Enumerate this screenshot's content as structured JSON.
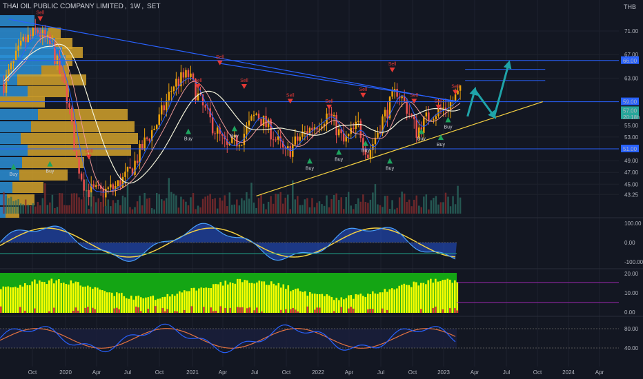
{
  "header": {
    "symbol": "THAI OIL PUBLIC COMPANY LIMITED",
    "interval": "1W",
    "exchange": "SET"
  },
  "currency": "THB",
  "colors": {
    "background": "#131722",
    "grid": "#1e222d",
    "up": "#f0a30a",
    "down": "#ef5350",
    "up_candle": "#26a69a",
    "volume_profile_up": "#2b8fd6",
    "volume_profile_down": "#d4a22a",
    "trendline_blue": "#2962ff",
    "trendline_yellow": "#f5d142",
    "arrow": "#1fa3a8",
    "buy": "#1ea35f",
    "sell": "#e53935",
    "label_blue": "#2962ff",
    "stoch_line1": "#2962ff",
    "stoch_line2": "#e57340",
    "osc_green": "#14a514",
    "osc_yellow": "#ffff00",
    "osc_red": "#e53935"
  },
  "chart_data": {
    "type": "candlestick",
    "x_axis_labels": [
      "Oct",
      "2020",
      "Apr",
      "Jul",
      "Oct",
      "2021",
      "Apr",
      "Jul",
      "Oct",
      "2022",
      "Apr",
      "Jul",
      "Oct",
      "2023",
      "Apr",
      "Jul",
      "Oct",
      "2024",
      "Apr"
    ],
    "price_axis": {
      "ticks": [
        "71.00",
        "67.00",
        "63.00",
        "59.00",
        "55.00",
        "53.00",
        "51.00",
        "49.00",
        "47.00",
        "45.00",
        "43.25"
      ],
      "labels": [
        {
          "text": "66.00",
          "kind": "level"
        },
        {
          "text": "59.00",
          "kind": "level"
        },
        {
          "text": "57.00",
          "kind": "price"
        },
        {
          "text": "20:18h",
          "kind": "countdown"
        },
        {
          "text": "51.00",
          "kind": "level"
        }
      ]
    },
    "horizontal_levels": [
      66.0,
      59.0,
      51.0
    ],
    "target_levels": [
      64.5,
      62.6
    ],
    "signals": {
      "sell_label": "Sell",
      "buy_label": "Buy",
      "sell_points": [
        {
          "x": "2019-10-20",
          "price": 73.5
        },
        {
          "x": "2021-03-21",
          "price": 66.0
        },
        {
          "x": "2020-03-08",
          "price": 50.0
        },
        {
          "x": "2021-01-17",
          "price": 62.0
        },
        {
          "x": "2021-05-30",
          "price": 62.0
        },
        {
          "x": "2021-10-10",
          "price": 59.5
        },
        {
          "x": "2022-01-30",
          "price": 58.5
        },
        {
          "x": "2022-05-08",
          "price": 60.5
        },
        {
          "x": "2022-07-31",
          "price": 64.8
        },
        {
          "x": "2022-10-02",
          "price": 59.5
        },
        {
          "x": "2022-12-11",
          "price": 58.5
        },
        {
          "x": "2023-01-29",
          "price": 61.0
        }
      ],
      "buy_points": [
        {
          "x": "2019-08-04",
          "price": 47.5
        },
        {
          "x": "2019-11-17",
          "price": 48.0
        },
        {
          "x": "2020-12-20",
          "price": 53.5
        },
        {
          "x": "2021-05-02",
          "price": 54.0
        },
        {
          "x": "2021-12-05",
          "price": 48.5
        },
        {
          "x": "2022-02-27",
          "price": 50.0
        },
        {
          "x": "2022-05-15",
          "price": 51.5
        },
        {
          "x": "2022-07-24",
          "price": 48.5
        },
        {
          "x": "2022-10-23",
          "price": 53.5
        },
        {
          "x": "2022-12-18",
          "price": 52.5
        },
        {
          "x": "2023-01-08",
          "price": 55.5
        }
      ]
    },
    "trendlines": [
      {
        "color": "blue",
        "from": {
          "x": "2019-07-21",
          "price": 73.0
        },
        "to": {
          "x": "2023-01-29",
          "price": 59.0
        }
      },
      {
        "color": "blue",
        "from": {
          "x": "2021-03-21",
          "price": 65.5
        },
        "to": {
          "x": "2023-02-12",
          "price": 59.0
        }
      },
      {
        "color": "yellow",
        "from": {
          "x": "2021-07-04",
          "price": 43.0
        },
        "to": {
          "x": "2023-10-08",
          "price": 59.0
        }
      }
    ],
    "projection_arrows": [
      {
        "from": {
          "x": "2023-03-05",
          "price": 56.5
        },
        "to": {
          "x": "2023-03-26",
          "price": 61.0
        }
      },
      {
        "from": {
          "x": "2023-03-26",
          "price": 61.0
        },
        "to": {
          "x": "2023-05-21",
          "price": 56.5
        }
      },
      {
        "from": {
          "x": "2023-05-21",
          "price": 56.5
        },
        "to": {
          "x": "2023-07-02",
          "price": 65.5
        }
      }
    ],
    "oscillator_panel": {
      "ticks": [
        "100.00",
        "0.00",
        "-100.00"
      ]
    },
    "volume_oscillator_panel": {
      "ticks": [
        "20.00",
        "10.00",
        "0.00"
      ]
    },
    "stochastic_panel": {
      "ticks": [
        "80.00",
        "40.00"
      ]
    }
  }
}
